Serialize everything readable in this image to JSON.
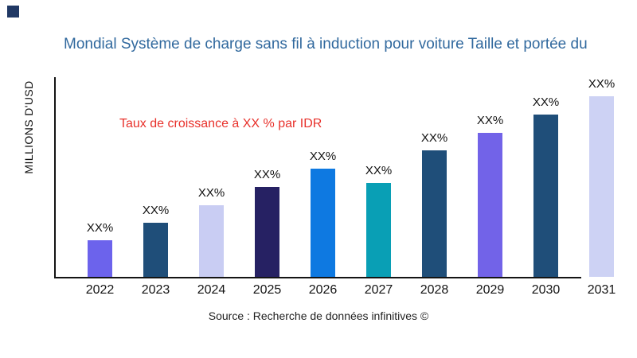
{
  "corner_square": {
    "color": "#203864"
  },
  "title": {
    "text": "Mondial Système de charge sans fil à induction pour voiture Taille et portée du",
    "color": "#31699E"
  },
  "annotation": {
    "text": "Taux de croissance à XX % par IDR",
    "color": "#E8312B"
  },
  "y_axis": {
    "label": "MILLIONS D'USD"
  },
  "source": {
    "text": "Source : Recherche de données infinitives ©"
  },
  "chart_data": {
    "type": "bar",
    "title": "Mondial Système de charge sans fil à induction pour voiture Taille et portée du",
    "xlabel": "",
    "ylabel": "MILLIONS D'USD",
    "grid": false,
    "legend": "none",
    "categories": [
      "2022",
      "2023",
      "2024",
      "2025",
      "2026",
      "2027",
      "2028",
      "2029",
      "2030",
      "2031"
    ],
    "value_labels": [
      "XX%",
      "XX%",
      "XX%",
      "XX%",
      "XX%",
      "XX%",
      "XX%",
      "XX%",
      "XX%",
      "XX%"
    ],
    "values_relative_height": [
      46,
      68,
      90,
      113,
      136,
      118,
      159,
      181,
      204,
      227
    ],
    "bar_colors": [
      "#6C63EC",
      "#1F4E79",
      "#C9CDF3",
      "#262163",
      "#0E79E1",
      "#099FB5",
      "#1F4E79",
      "#7263E8",
      "#1F4E79",
      "#CDD2F4"
    ],
    "annotation": "Taux de croissance à XX % par IDR",
    "source": "Source : Recherche de données infinitives ©"
  }
}
